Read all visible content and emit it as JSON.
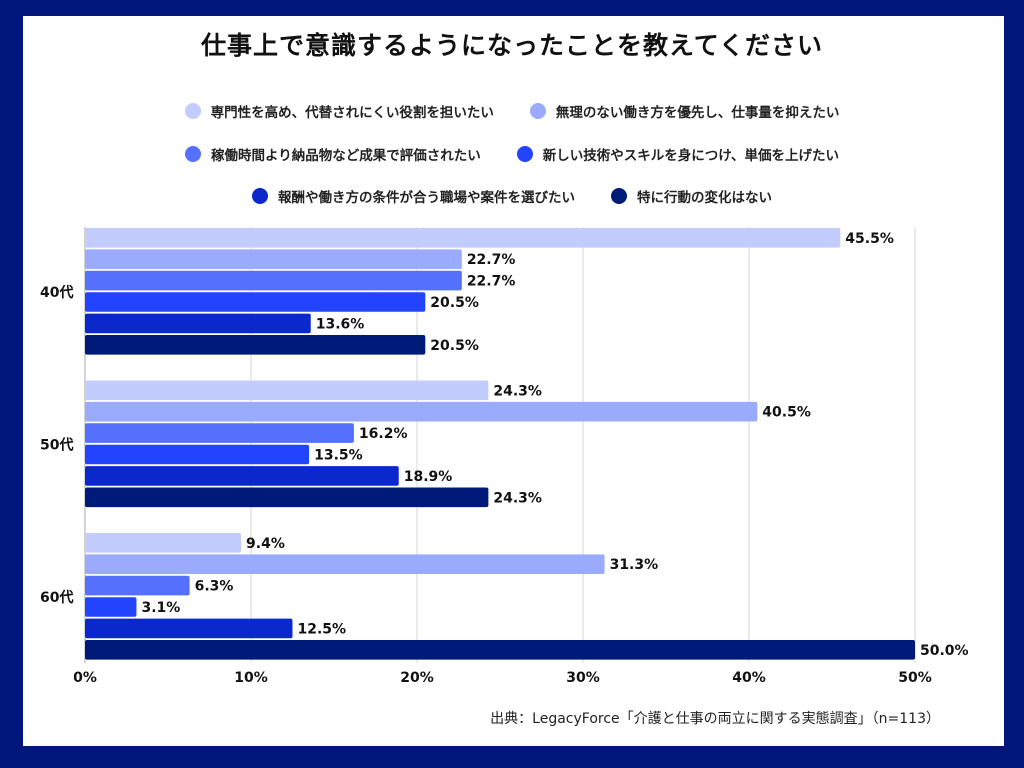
{
  "title": "仕事上で意識するようになったことを教えてください",
  "source": "出典：LegacyForce「介護と仕事の両立に関する実態調査」（n=113）",
  "chart_data": {
    "type": "bar",
    "orientation": "horizontal",
    "title": "仕事上で意識するようになったことを教えてください",
    "categories": [
      "40代",
      "50代",
      "60代"
    ],
    "series": [
      {
        "name": "専門性を高め、代替されにくい役割を担いたい",
        "color": "#c3cdfd",
        "values": [
          45.5,
          24.3,
          9.4
        ],
        "labels": [
          "45.5%",
          "24.3%",
          "9.4%"
        ]
      },
      {
        "name": "無理のない働き方を優先し、仕事量を抑えたい",
        "color": "#9aabfd",
        "values": [
          22.7,
          40.5,
          31.3
        ],
        "labels": [
          "22.7%",
          "40.5%",
          "31.3%"
        ]
      },
      {
        "name": "稼働時間より納品物など成果で評価されたい",
        "color": "#5570fd",
        "values": [
          22.7,
          16.2,
          6.3
        ],
        "labels": [
          "22.7%",
          "16.2%",
          "6.3%"
        ]
      },
      {
        "name": "新しい技術やスキルを身につけ、単価を上げたい",
        "color": "#2244ff",
        "values": [
          20.5,
          13.5,
          3.1
        ],
        "labels": [
          "20.5%",
          "13.5%",
          "3.1%"
        ]
      },
      {
        "name": "報酬や働き方の条件が合う職場や案件を選びたい",
        "color": "#0a28cc",
        "values": [
          13.6,
          18.9,
          12.5
        ],
        "labels": [
          "13.6%",
          "18.9%",
          "12.5%"
        ]
      },
      {
        "name": "特に行動の変化はない",
        "color": "#001a7a",
        "values": [
          20.5,
          24.3,
          50.0
        ],
        "labels": [
          "20.5%",
          "24.3%",
          "50.0%"
        ]
      }
    ],
    "xlim": [
      0,
      50
    ],
    "xticks": [
      0,
      10,
      20,
      30,
      40,
      50
    ],
    "xtick_labels": [
      "0%",
      "10%",
      "20%",
      "30%",
      "40%",
      "50%"
    ],
    "xlabel": "",
    "ylabel": "",
    "grid": true,
    "legend_position": "top"
  },
  "colors": {
    "frame": "#00167a",
    "grid": "#e3e3e3"
  }
}
